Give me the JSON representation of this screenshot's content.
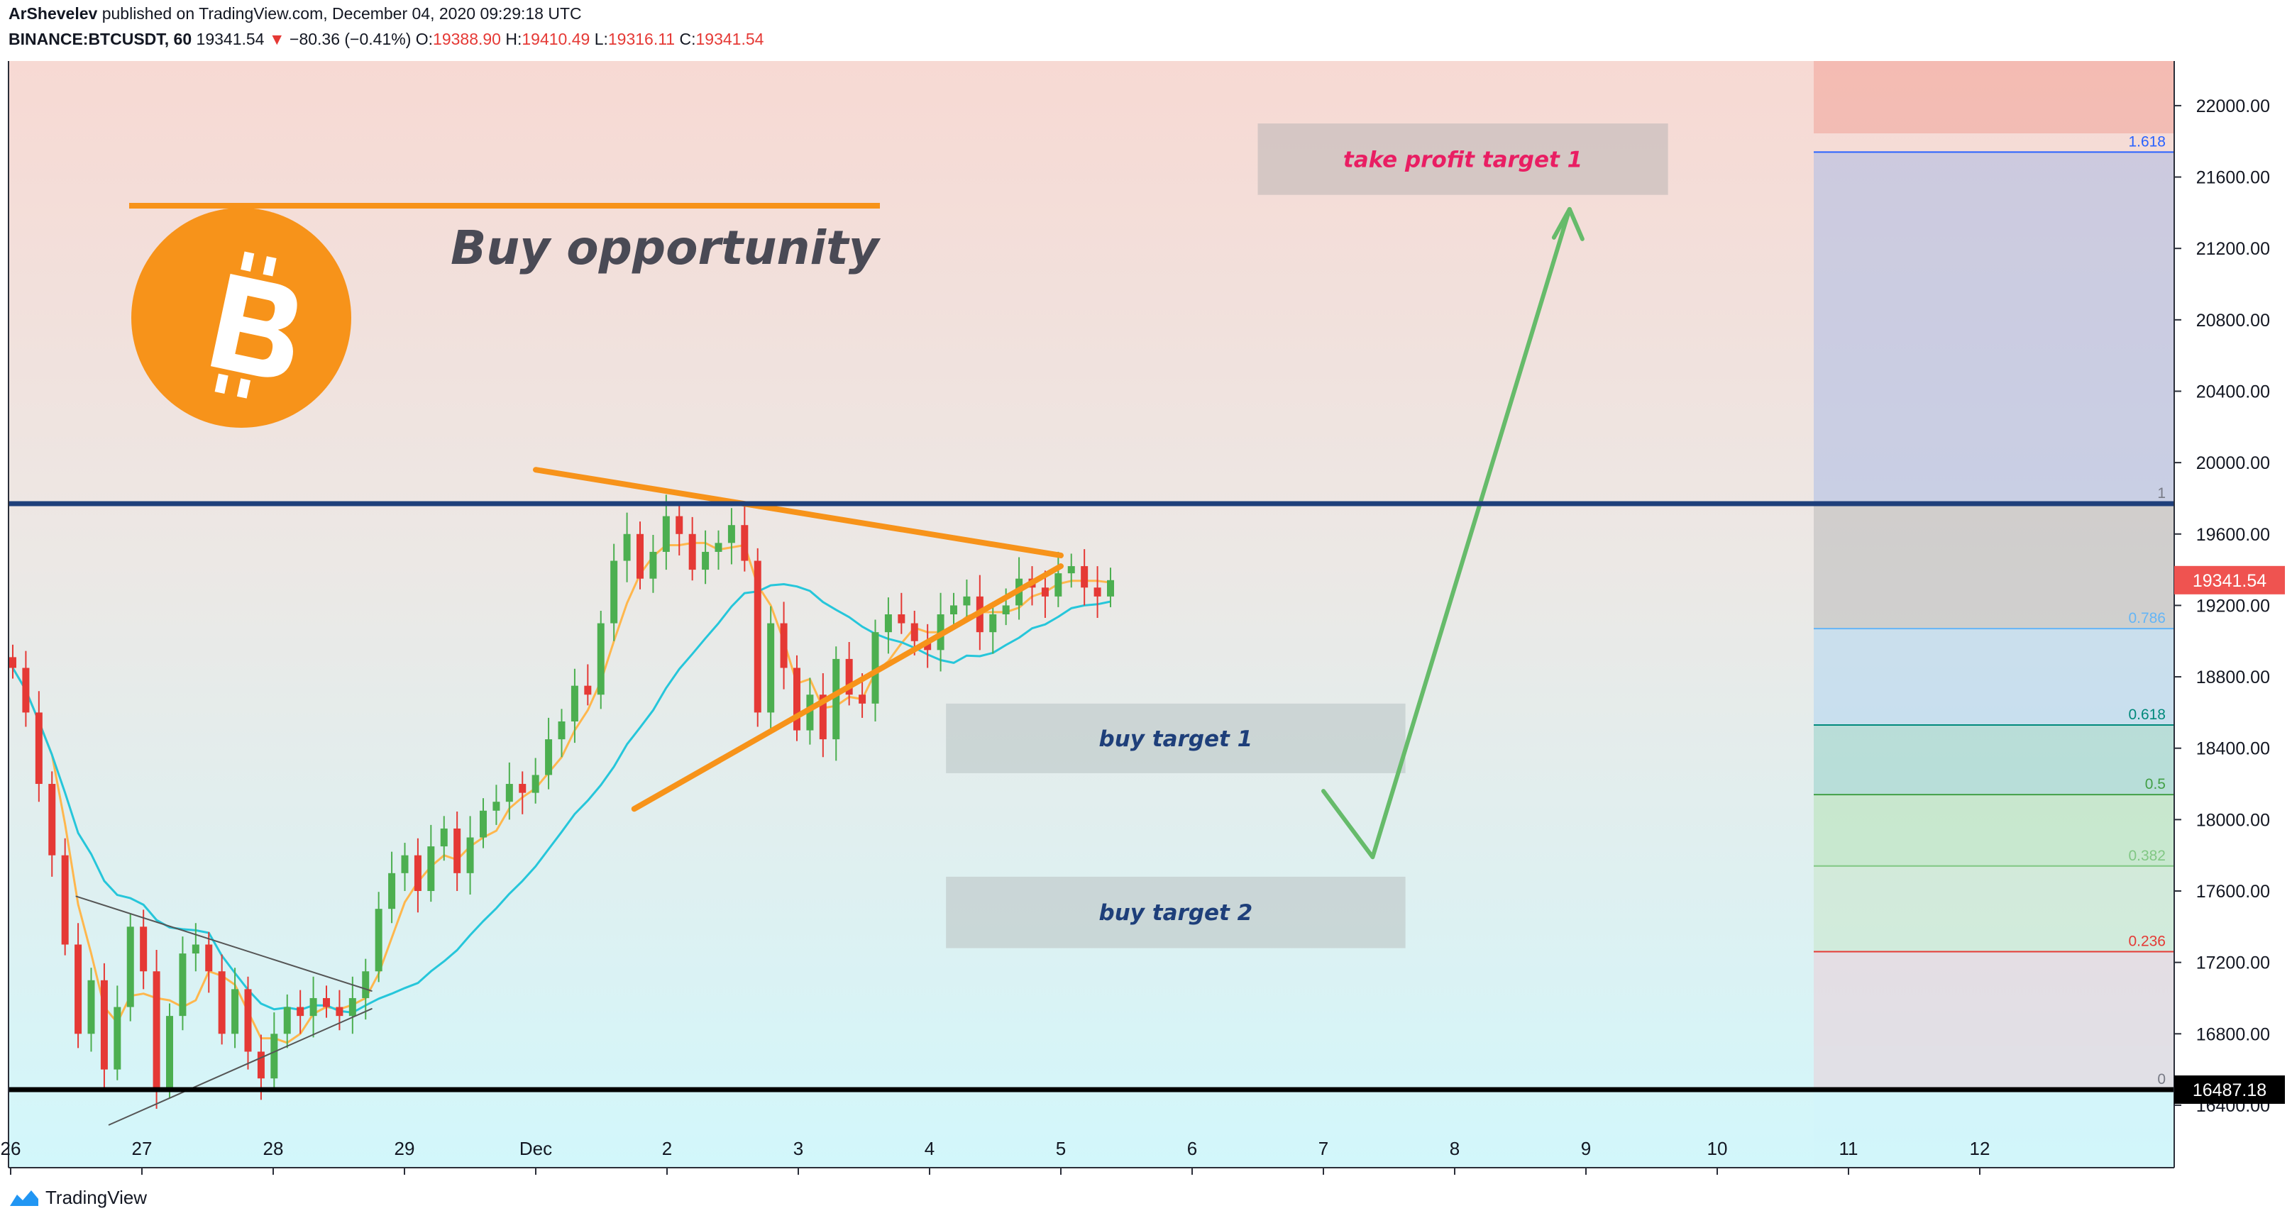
{
  "header": {
    "author": "ArShevelev",
    "published_text": "published on TradingView.com, December 04, 2020 09:29:18 UTC",
    "symbol": "BINANCE:BTCUSDT, 60",
    "last": "19341.54",
    "change_arrow": "▼",
    "change": "−80.36 (−0.41%)",
    "o_label": "O:",
    "o_value": "19388.90",
    "h_label": "H:",
    "h_value": "19410.49",
    "l_label": "L:",
    "l_value": "19316.11",
    "c_label": "C:",
    "c_value": "19341.54"
  },
  "annotations": {
    "headline": "Buy opportunity",
    "take_profit": "take profit target 1",
    "buy_target_1": "buy target 1",
    "buy_target_2": "buy target 2",
    "bitcoin_logo_icon": "bitcoin-logo-icon"
  },
  "price_badges": {
    "last": "19341.54",
    "support": "16487.18"
  },
  "footer": {
    "brand": "TradingView",
    "logo_icon": "tradingview-logo-icon"
  },
  "colors": {
    "up": "#26a69a",
    "candle_up": "#4caf50",
    "candle_down": "#e53935",
    "ma_fast": "#ffb74d",
    "ma_slow": "#26c6da",
    "triangle": "#f7931a",
    "resistance": "#1e3f7a",
    "support": "#000000",
    "arrow": "#66bb6a",
    "take_profit_text": "#e91e63",
    "target_text": "#1e3f7a",
    "last_badge": "#ef5350"
  },
  "chart_data": {
    "type": "candlestick",
    "interval": "60",
    "x_axis": {
      "ticks": [
        "26",
        "27",
        "28",
        "29",
        "Dec",
        "2",
        "3",
        "4",
        "5",
        "6",
        "7",
        "8",
        "9",
        "10",
        "11",
        "12"
      ]
    },
    "y_axis": {
      "range": [
        16050,
        22250
      ],
      "ticks": [
        "16400.00",
        "16800.00",
        "17200.00",
        "17600.00",
        "18000.00",
        "18400.00",
        "18800.00",
        "19200.00",
        "19600.00",
        "20000.00",
        "20400.00",
        "20800.00",
        "21200.00",
        "21600.00",
        "22000.00"
      ]
    },
    "levels": {
      "resistance": 19770,
      "support": 16487.18,
      "last": 19341.54
    },
    "fibonacci": [
      {
        "label": "1.618",
        "price": 21740,
        "color": "#2962ff",
        "fill": "rgba(172,188,230,0.55)"
      },
      {
        "label": "1",
        "price": 19770,
        "color": "#787b86",
        "fill": "rgba(185,185,185,0.55)"
      },
      {
        "label": "0.786",
        "price": 19070,
        "color": "#64b5f6",
        "fill": "rgba(176,214,240,0.55)"
      },
      {
        "label": "0.618",
        "price": 18530,
        "color": "#00897b",
        "fill": "rgba(150,210,200,0.55)"
      },
      {
        "label": "0.5",
        "price": 18140,
        "color": "#43a047",
        "fill": "rgba(180,225,180,0.55)"
      },
      {
        "label": "0.382",
        "price": 17740,
        "color": "#81c784",
        "fill": "rgba(200,230,200,0.55)"
      },
      {
        "label": "0.236",
        "price": 17260,
        "color": "#e53935",
        "fill": "rgba(235,205,215,0.55)"
      },
      {
        "label": "0",
        "price": 16487.18,
        "color": "#787b86",
        "fill": null
      }
    ],
    "triangle_main": {
      "upper": [
        [
          "Nov 30",
          19960
        ],
        [
          "Dec 5",
          19480
        ]
      ],
      "lower": [
        [
          "Nov 30 18:00",
          18060
        ],
        [
          "Dec 5",
          19420
        ]
      ]
    },
    "triangle_small": {
      "upper": [
        [
          "Nov 26 12:00",
          17570
        ],
        [
          "Nov 28 18:00",
          17040
        ]
      ],
      "lower": [
        [
          "Nov 26 18:00",
          16290
        ],
        [
          "Nov 28 18:00",
          16940
        ]
      ]
    },
    "projection_arrow": [
      [
        "Dec 7",
        18160
      ],
      [
        "Dec 7 9:00",
        17790
      ],
      [
        "Dec 8 21:00",
        21420
      ]
    ],
    "target_zones": [
      {
        "name": "take profit target 1",
        "from": "Dec 6 12:00",
        "to": "Dec 9 15:00",
        "low": 21500,
        "high": 21900
      },
      {
        "name": "buy target 1",
        "from": "Dec 4 03:00",
        "to": "Dec 7 15:00",
        "low": 18260,
        "high": 18650
      },
      {
        "name": "buy target 2",
        "from": "Dec 4 03:00",
        "to": "Dec 7 15:00",
        "low": 17280,
        "high": 17680
      }
    ],
    "close_series": [
      18850,
      18600,
      18200,
      17800,
      17300,
      16800,
      17100,
      16600,
      16950,
      17400,
      17150,
      16500,
      16900,
      17250,
      17300,
      17150,
      16800,
      17050,
      16700,
      16550,
      16800,
      16950,
      16900,
      17000,
      16950,
      16900,
      17000,
      17150,
      17500,
      17700,
      17800,
      17600,
      17850,
      17950,
      17700,
      17900,
      18050,
      18100,
      18200,
      18150,
      18250,
      18450,
      18550,
      18750,
      18700,
      19100,
      19450,
      19600,
      19350,
      19500,
      19700,
      19600,
      19400,
      19500,
      19550,
      19650,
      19450,
      18600,
      19100,
      18850,
      18500,
      18700,
      18450,
      18900,
      18700,
      18650,
      19050,
      19150,
      19100,
      19000,
      18950,
      19150,
      19200,
      19250,
      19050,
      19150,
      19200,
      19350,
      19300,
      19250,
      19380,
      19420,
      19300,
      19250,
      19341.54
    ]
  }
}
